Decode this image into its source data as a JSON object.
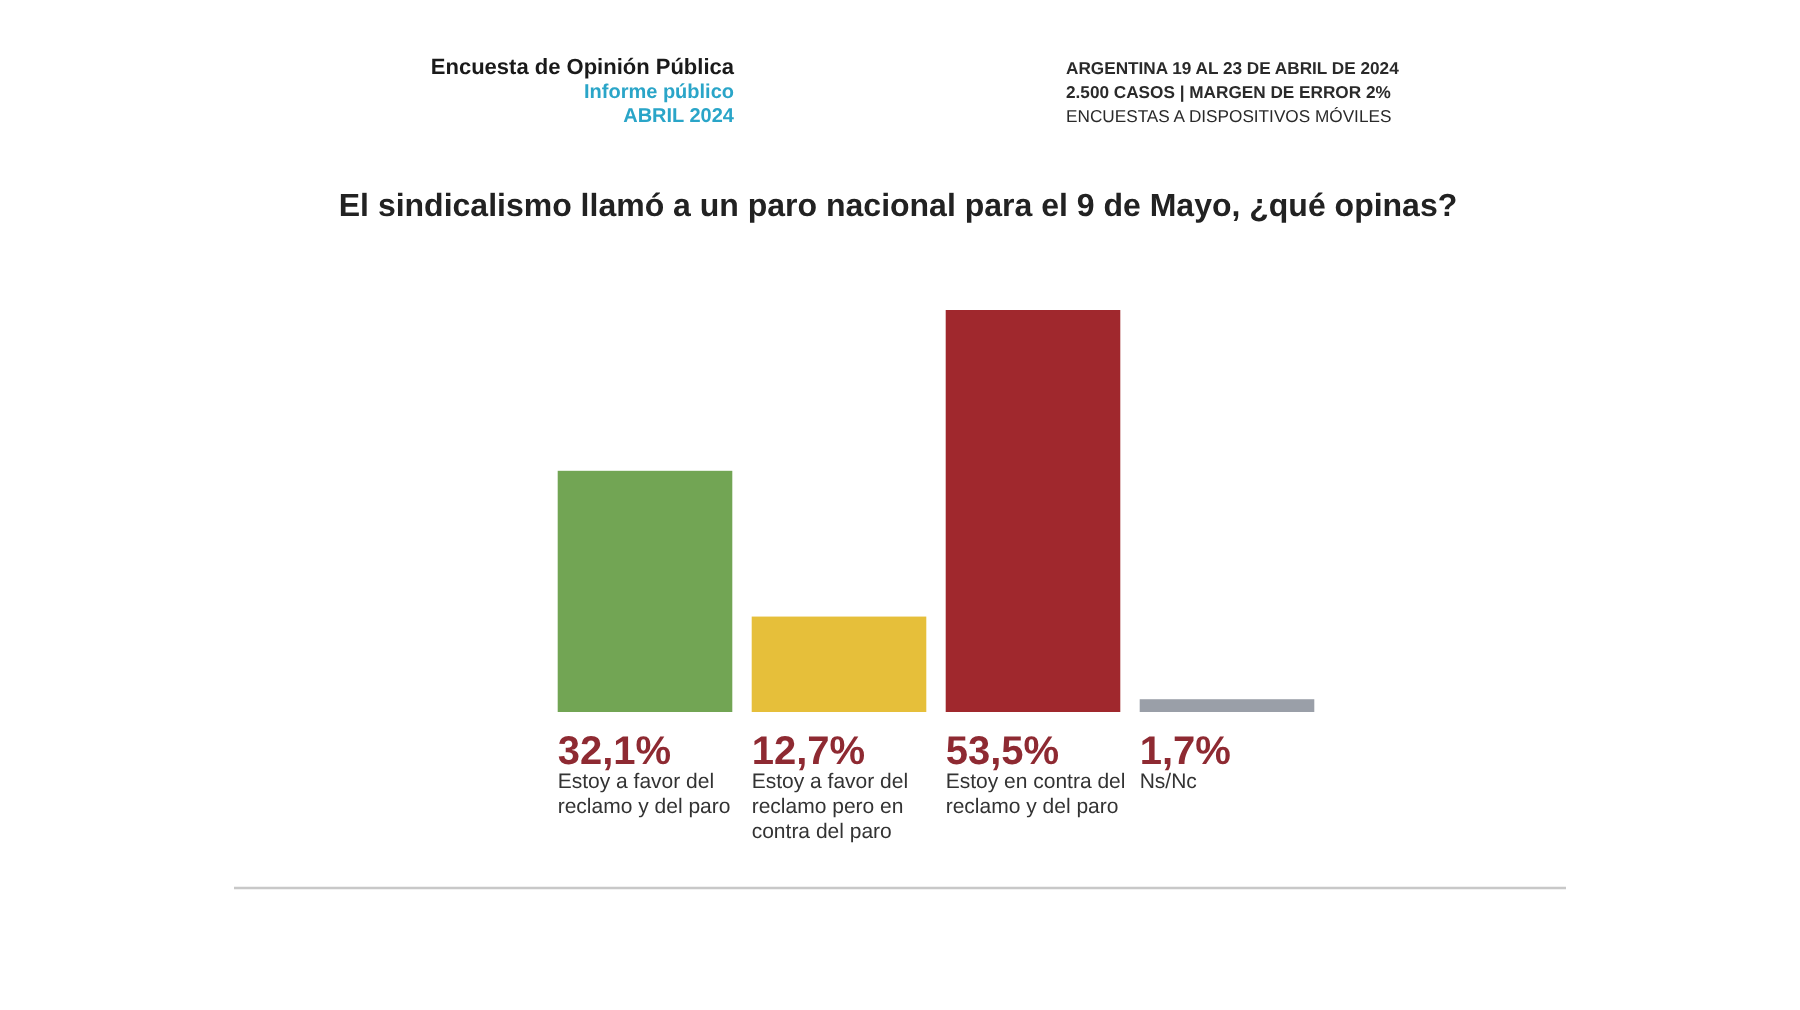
{
  "chart_data": {
    "type": "bar",
    "title": "El sindicalismo llamó a un paro nacional para el 9 de Mayo, ¿qué opinas?",
    "categories": [
      "Estoy a favor del reclamo y del paro",
      "Estoy a favor del reclamo pero en contra del paro",
      "Estoy en contra del reclamo y del paro",
      "Ns/Nc"
    ],
    "values": [
      32.1,
      12.7,
      53.5,
      1.7
    ],
    "colors": [
      "#72a554",
      "#e6bf3a",
      "#a0282d",
      "#9a9fa8"
    ],
    "value_labels": [
      "32,1%",
      "12,7%",
      "53,5%",
      "1,7%"
    ],
    "annotations": [
      "Encuesta de Opinión Pública",
      "Informe público",
      "ABRIL 2024",
      "ARGENTINA 19 AL 23 DE ABRIL DE 2024",
      "2.500 CASOS | MARGEN DE ERROR 2%",
      "ENCUESTAS A DISPOSITIVOS MÓVILES"
    ]
  }
}
